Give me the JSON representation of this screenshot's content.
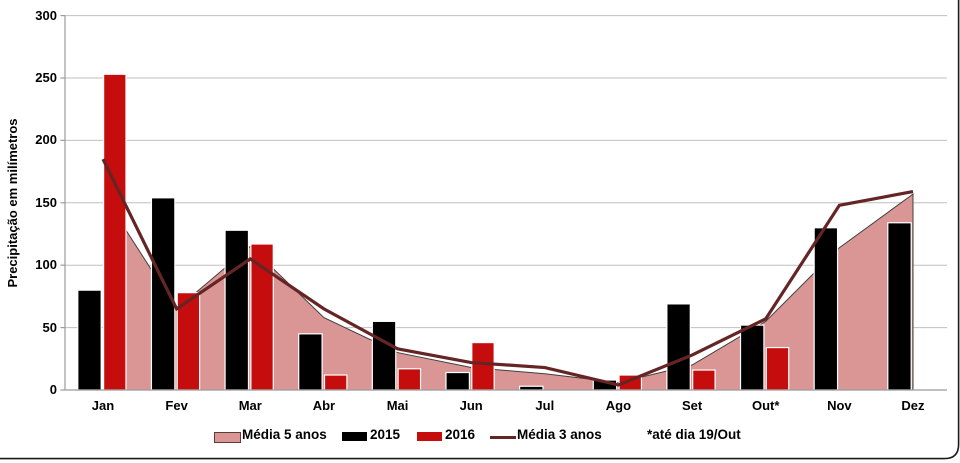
{
  "chart_data": {
    "type": "combo",
    "title": "",
    "ylabel": "Precipitação em milímetros",
    "ylim": [
      0,
      300
    ],
    "yticks": [
      0,
      50,
      100,
      150,
      200,
      250,
      300
    ],
    "grid": true,
    "legend_position": "bottom",
    "categories": [
      "Jan",
      "Fev",
      "Mar",
      "Abr",
      "Mai",
      "Jun",
      "Jul",
      "Ago",
      "Set",
      "Out*",
      "Nov",
      "Dez"
    ],
    "series": [
      {
        "name": "Média 5 anos",
        "type": "area",
        "color": "#D99694",
        "outline": "#404040",
        "values": [
          128,
          65,
          115,
          58,
          30,
          18,
          13,
          6,
          20,
          55,
          114,
          157
        ]
      },
      {
        "name": "2015",
        "type": "bar",
        "color": "#000000",
        "values": [
          80,
          154,
          128,
          45,
          55,
          14,
          3,
          8,
          69,
          52,
          130,
          134
        ]
      },
      {
        "name": "2016",
        "type": "bar",
        "color": "#C60D0D",
        "values": [
          253,
          78,
          117,
          12,
          17,
          38,
          0,
          12,
          16,
          34,
          null,
          null
        ]
      },
      {
        "name": "Média 3 anos",
        "type": "line",
        "color": "#652525",
        "values": [
          185,
          65,
          105,
          65,
          33,
          22,
          18,
          4,
          28,
          57,
          148,
          159
        ]
      }
    ],
    "annotation": "*até dia 19/Out"
  },
  "colors": {
    "background": "#FFFFFF",
    "gridline": "#BFBFBF",
    "axis": "#9B9B9B",
    "frame": "#1A1A1A",
    "bar_separator": "#FFFFFF"
  }
}
